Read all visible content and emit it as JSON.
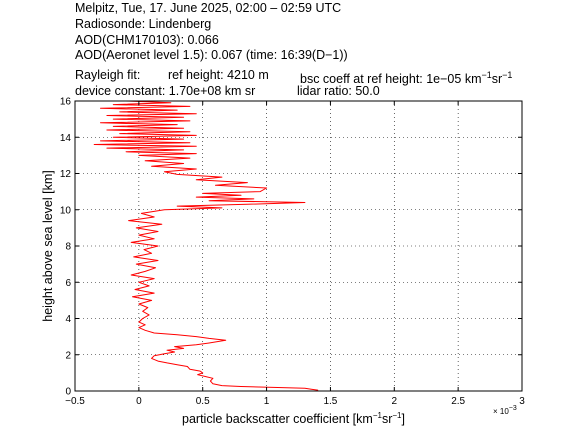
{
  "header": {
    "line1": "Melpitz, Tue, 17. June 2025, 02:00 – 02:59 UTC",
    "line2": "Radiosonde: Lindenberg",
    "line3": "AOD(CHM170103): 0.066",
    "line4": "AOD(Aeronet level 1.5): 0.067   (time: 16:39(D−1))",
    "rayleigh_label": "Rayleigh fit:",
    "ref_height": "ref height: 4210 m",
    "bsc_coeff_prefix": "bsc coeff at ref height: 1e−05 km",
    "unit_exp1": "−1",
    "unit_sr": "sr",
    "unit_exp2": "−1",
    "device_constant": "device constant: 1.70e+08 km sr",
    "lidar_ratio": "lidar ratio: 50.0"
  },
  "chart_data": {
    "type": "line",
    "xlabel_prefix": "particle backscatter coefficient [km",
    "xlabel_exp1": "−1",
    "xlabel_mid": "sr",
    "xlabel_exp2": "−1",
    "xlabel_suffix": "]",
    "ylabel": "height above sea level [km]",
    "x_multiplier": "× 10",
    "x_multiplier_exp": "−3",
    "xlim": [
      -0.5,
      3
    ],
    "ylim": [
      0,
      16
    ],
    "xticks": [
      "−0.5",
      "0",
      "0.5",
      "1",
      "1.5",
      "2",
      "2.5",
      "3"
    ],
    "yticks": [
      "0",
      "2",
      "4",
      "6",
      "8",
      "10",
      "12",
      "14",
      "16"
    ],
    "grid": true,
    "series_color": "#ff0000",
    "series": [
      {
        "name": "",
        "points": [
          [
            1.4,
            0.0
          ],
          [
            1.4,
            0.05
          ],
          [
            1.35,
            0.1
          ],
          [
            1.3,
            0.15
          ],
          [
            1.05,
            0.2
          ],
          [
            0.8,
            0.25
          ],
          [
            0.65,
            0.3
          ],
          [
            0.58,
            0.4
          ],
          [
            0.56,
            0.55
          ],
          [
            0.58,
            0.7
          ],
          [
            0.52,
            0.8
          ],
          [
            0.46,
            0.9
          ],
          [
            0.5,
            1.0
          ],
          [
            0.48,
            1.1
          ],
          [
            0.4,
            1.2
          ],
          [
            0.38,
            1.35
          ],
          [
            0.3,
            1.45
          ],
          [
            0.22,
            1.55
          ],
          [
            0.15,
            1.65
          ],
          [
            0.1,
            1.8
          ],
          [
            0.12,
            1.95
          ],
          [
            0.2,
            2.05
          ],
          [
            0.28,
            2.15
          ],
          [
            0.22,
            2.25
          ],
          [
            0.35,
            2.35
          ],
          [
            0.28,
            2.45
          ],
          [
            0.45,
            2.55
          ],
          [
            0.55,
            2.65
          ],
          [
            0.68,
            2.8
          ],
          [
            0.55,
            2.9
          ],
          [
            0.45,
            3.0
          ],
          [
            0.3,
            3.1
          ],
          [
            0.12,
            3.2
          ],
          [
            0.05,
            3.35
          ],
          [
            0.0,
            3.5
          ],
          [
            0.05,
            3.65
          ],
          [
            0.0,
            3.8
          ],
          [
            0.03,
            4.0
          ],
          [
            0.08,
            4.2
          ],
          [
            0.03,
            4.4
          ],
          [
            0.07,
            4.6
          ],
          [
            0.0,
            4.8
          ],
          [
            0.1,
            5.0
          ],
          [
            -0.05,
            5.2
          ],
          [
            0.12,
            5.4
          ],
          [
            -0.03,
            5.6
          ],
          [
            0.08,
            5.8
          ],
          [
            0.0,
            6.0
          ],
          [
            0.12,
            6.2
          ],
          [
            -0.06,
            6.4
          ],
          [
            0.05,
            6.6
          ],
          [
            0.13,
            6.8
          ],
          [
            -0.02,
            7.0
          ],
          [
            0.15,
            7.2
          ],
          [
            -0.04,
            7.4
          ],
          [
            0.1,
            7.6
          ],
          [
            0.04,
            7.8
          ],
          [
            0.15,
            8.0
          ],
          [
            -0.06,
            8.2
          ],
          [
            0.12,
            8.4
          ],
          [
            0.0,
            8.6
          ],
          [
            0.15,
            8.8
          ],
          [
            -0.02,
            9.0
          ],
          [
            0.18,
            9.2
          ],
          [
            -0.08,
            9.4
          ],
          [
            0.12,
            9.6
          ],
          [
            0.02,
            9.8
          ],
          [
            0.2,
            10.0
          ],
          [
            0.65,
            10.1
          ],
          [
            0.3,
            10.2
          ],
          [
            0.85,
            10.3
          ],
          [
            1.3,
            10.4
          ],
          [
            0.55,
            10.5
          ],
          [
            0.9,
            10.6
          ],
          [
            0.45,
            10.7
          ],
          [
            0.8,
            10.8
          ],
          [
            0.5,
            10.9
          ],
          [
            0.95,
            11.0
          ],
          [
            1.0,
            11.2
          ],
          [
            0.6,
            11.35
          ],
          [
            0.85,
            11.5
          ],
          [
            0.45,
            11.65
          ],
          [
            0.65,
            11.8
          ],
          [
            0.3,
            11.95
          ],
          [
            0.2,
            12.1
          ],
          [
            0.45,
            12.25
          ],
          [
            0.1,
            12.4
          ],
          [
            0.35,
            12.55
          ],
          [
            0.05,
            12.7
          ],
          [
            0.4,
            12.85
          ],
          [
            0.0,
            13.0
          ],
          [
            0.45,
            13.1
          ],
          [
            -0.1,
            13.2
          ],
          [
            0.35,
            13.3
          ],
          [
            -0.25,
            13.4
          ],
          [
            0.45,
            13.5
          ],
          [
            -0.35,
            13.6
          ],
          [
            0.4,
            13.7
          ],
          [
            -0.3,
            13.8
          ],
          [
            0.35,
            13.9
          ],
          [
            -0.2,
            14.0
          ],
          [
            0.45,
            14.1
          ],
          [
            -0.15,
            14.2
          ],
          [
            0.4,
            14.3
          ],
          [
            -0.25,
            14.4
          ],
          [
            0.35,
            14.5
          ],
          [
            -0.2,
            14.6
          ],
          [
            0.3,
            14.7
          ],
          [
            -0.3,
            14.8
          ],
          [
            0.4,
            14.9
          ],
          [
            -0.2,
            15.0
          ],
          [
            0.35,
            15.1
          ],
          [
            -0.25,
            15.2
          ],
          [
            0.45,
            15.3
          ],
          [
            -0.15,
            15.4
          ],
          [
            0.3,
            15.5
          ],
          [
            -0.3,
            15.6
          ],
          [
            0.4,
            15.7
          ],
          [
            -0.2,
            15.8
          ],
          [
            0.25,
            15.9
          ],
          [
            -0.1,
            16.0
          ]
        ]
      }
    ]
  }
}
